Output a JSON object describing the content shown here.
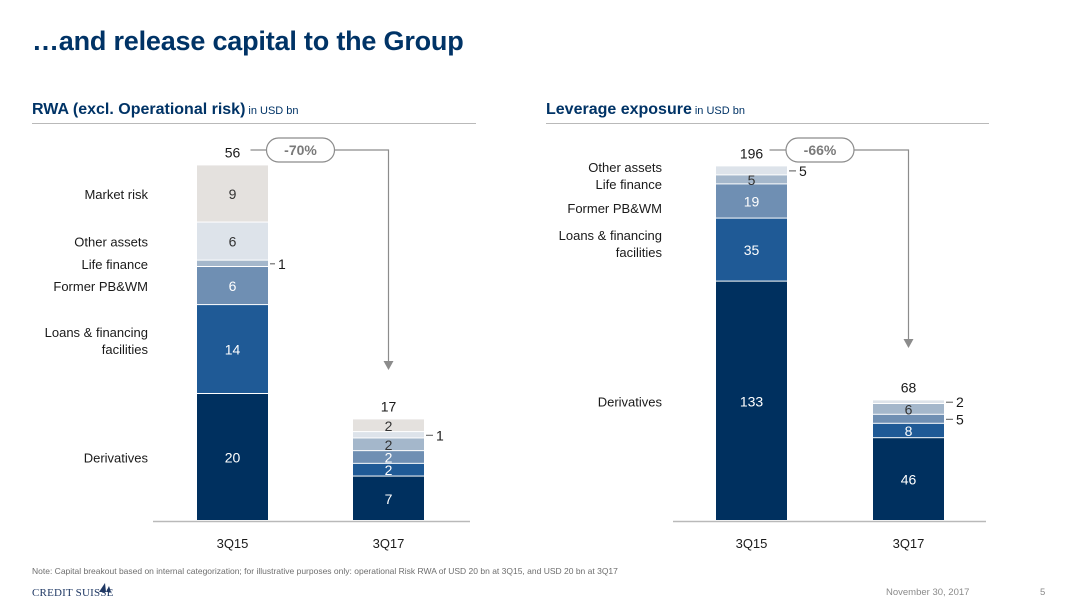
{
  "title": "…and release capital to the Group",
  "colors": {
    "title": "#003366",
    "derivatives": "#00305f",
    "loans": "#1f5a96",
    "pbwm": "#6f8fb3",
    "life": "#a4b7cb",
    "other": "#dde3ea",
    "market": "#e4e1de",
    "axis": "#b9b9b9",
    "arrow": "#8c8c8c"
  },
  "left_panel": {
    "title": "RWA (excl. Operational risk)",
    "unit": "in USD bn"
  },
  "right_panel": {
    "title": "Leverage exposure",
    "unit": "in USD bn"
  },
  "chart_data": [
    {
      "type": "bar",
      "stacked": true,
      "title": "RWA (excl. Operational risk)",
      "unit": "in USD bn",
      "categories": [
        "3Q15",
        "3Q17"
      ],
      "totals": [
        "56",
        "17"
      ],
      "change_label": "-70%",
      "series": [
        {
          "name": "Derivatives",
          "color_key": "derivatives",
          "values": [
            20,
            7
          ],
          "labels": [
            "20",
            "7"
          ]
        },
        {
          "name": "Loans & financing facilities",
          "color_key": "loans",
          "values": [
            14,
            2
          ],
          "labels": [
            "14",
            "2"
          ]
        },
        {
          "name": "Former PB&WM",
          "color_key": "pbwm",
          "values": [
            6,
            2
          ],
          "labels": [
            "6",
            "2"
          ]
        },
        {
          "name": "Life finance",
          "color_key": "life",
          "values": [
            1,
            2
          ],
          "labels": [
            "1",
            "2"
          ]
        },
        {
          "name": "Other assets",
          "color_key": "other",
          "values": [
            6,
            1
          ],
          "labels": [
            "6",
            "1"
          ]
        },
        {
          "name": "Market risk",
          "color_key": "market",
          "values": [
            9,
            2
          ],
          "labels": [
            "9",
            "2"
          ]
        }
      ]
    },
    {
      "type": "bar",
      "stacked": true,
      "title": "Leverage exposure",
      "unit": "in USD bn",
      "categories": [
        "3Q15",
        "3Q17"
      ],
      "totals": [
        "196",
        "68"
      ],
      "change_label": "-66%",
      "series": [
        {
          "name": "Derivatives",
          "color_key": "derivatives",
          "values": [
            133,
            46
          ],
          "labels": [
            "133",
            "46"
          ]
        },
        {
          "name": "Loans & financing facilities",
          "color_key": "loans",
          "values": [
            35,
            8
          ],
          "labels": [
            "35",
            "8"
          ]
        },
        {
          "name": "Former PB&WM",
          "color_key": "pbwm",
          "values": [
            19,
            5
          ],
          "labels": [
            "19",
            "5"
          ]
        },
        {
          "name": "Life finance",
          "color_key": "life",
          "values": [
            5,
            6
          ],
          "labels": [
            "5",
            "6"
          ]
        },
        {
          "name": "Other assets",
          "color_key": "other",
          "values": [
            5,
            2
          ],
          "labels": [
            "5",
            "2"
          ]
        }
      ]
    }
  ],
  "footnote": "Note: Capital breakout based on internal categorization; for illustrative purposes only: operational Risk RWA of USD 20 bn at 3Q15, and USD 20 bn at 3Q17",
  "footer": {
    "logo_text": "CREDIT SUISSE",
    "date": "November 30, 2017",
    "page": "5"
  }
}
